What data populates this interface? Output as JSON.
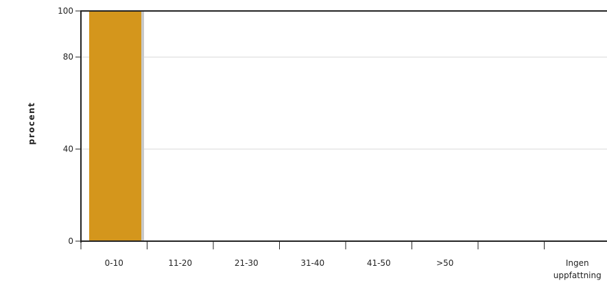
{
  "chart_data": {
    "type": "bar",
    "title": "",
    "xlabel": "",
    "ylabel": "procent",
    "categories": [
      "0-10",
      "11-20",
      "21-30",
      "31-40",
      "41-50",
      ">50",
      "",
      "Ingen uppfattning"
    ],
    "category_lines": [
      [
        "0-10"
      ],
      [
        "11-20"
      ],
      [
        "21-30"
      ],
      [
        "31-40"
      ],
      [
        "41-50"
      ],
      [
        ">50"
      ],
      [],
      [
        "Ingen",
        "uppfattning"
      ]
    ],
    "values": [
      100,
      0,
      0,
      0,
      0,
      0,
      0,
      0
    ],
    "ylim": [
      0,
      100
    ],
    "yticks": [
      0,
      40,
      80,
      100
    ],
    "grid": true,
    "bar_color": "#D4961C",
    "bar_shadow_color": "#C8C8C8",
    "grid_color": "#D9D9D9",
    "axis_color": "#222222"
  }
}
